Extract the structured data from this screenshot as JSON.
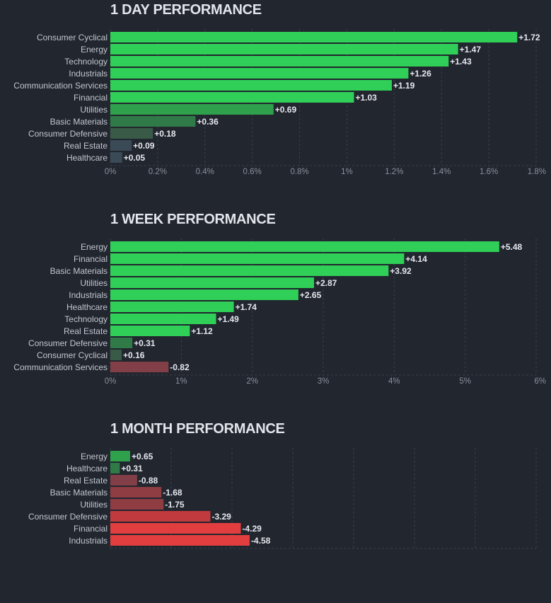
{
  "chart_data": [
    {
      "type": "bar",
      "orientation": "horizontal",
      "title": "1 DAY PERFORMANCE",
      "categories": [
        "Consumer Cyclical",
        "Energy",
        "Technology",
        "Industrials",
        "Communication Services",
        "Financial",
        "Utilities",
        "Basic Materials",
        "Consumer Defensive",
        "Real Estate",
        "Healthcare"
      ],
      "values": [
        1.72,
        1.47,
        1.43,
        1.26,
        1.19,
        1.03,
        0.69,
        0.36,
        0.18,
        0.09,
        0.05
      ],
      "value_labels": [
        "+1.72",
        "+1.47",
        "+1.43",
        "+1.26",
        "+1.19",
        "+1.03",
        "+0.69",
        "+0.36",
        "+0.18",
        "+0.09",
        "+0.05"
      ],
      "xlim": [
        0,
        1.8
      ],
      "xticks": [
        0,
        0.2,
        0.4,
        0.6,
        0.8,
        1,
        1.2,
        1.4,
        1.6,
        1.8
      ],
      "xtick_labels": [
        "0%",
        "0.2%",
        "0.4%",
        "0.6%",
        "0.8%",
        "1%",
        "1.2%",
        "1.4%",
        "1.6%",
        "1.8%"
      ],
      "grid": true
    },
    {
      "type": "bar",
      "orientation": "horizontal",
      "title": "1 WEEK PERFORMANCE",
      "categories": [
        "Energy",
        "Financial",
        "Basic Materials",
        "Utilities",
        "Industrials",
        "Healthcare",
        "Technology",
        "Real Estate",
        "Consumer Defensive",
        "Consumer Cyclical",
        "Communication Services"
      ],
      "values": [
        5.48,
        4.14,
        3.92,
        2.87,
        2.65,
        1.74,
        1.49,
        1.12,
        0.31,
        0.16,
        -0.82
      ],
      "value_labels": [
        "+5.48",
        "+4.14",
        "+3.92",
        "+2.87",
        "+2.65",
        "+1.74",
        "+1.49",
        "+1.12",
        "+0.31",
        "+0.16",
        "-0.82"
      ],
      "xlim": [
        0,
        6
      ],
      "xticks": [
        0,
        1,
        2,
        3,
        4,
        5,
        6
      ],
      "xtick_labels": [
        "0%",
        "1%",
        "2%",
        "3%",
        "4%",
        "5%",
        "6%"
      ],
      "grid": true
    },
    {
      "type": "bar",
      "orientation": "horizontal",
      "title": "1 MONTH PERFORMANCE",
      "categories": [
        "Energy",
        "Healthcare",
        "Real Estate",
        "Basic Materials",
        "Utilities",
        "Consumer Defensive",
        "Financial",
        "Industrials"
      ],
      "values": [
        0.65,
        0.31,
        -0.88,
        -1.68,
        -1.75,
        -3.29,
        -4.29,
        -4.58
      ],
      "value_labels": [
        "+0.65",
        "+0.31",
        "-0.88",
        "-1.68",
        "-1.75",
        "-3.29",
        "-4.29",
        "-4.58"
      ],
      "xlim": [
        0,
        14
      ],
      "grid": true
    }
  ]
}
